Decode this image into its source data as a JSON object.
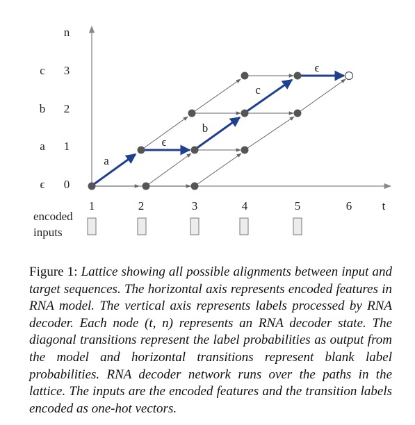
{
  "diagram": {
    "axis_n_label": "n",
    "axis_t_label": "t",
    "labels_left": [
      {
        "label": "c",
        "n": "3"
      },
      {
        "label": "b",
        "n": "2"
      },
      {
        "label": "a",
        "n": "1"
      },
      {
        "label": "ϵ",
        "n": "0"
      }
    ],
    "t_ticks": [
      "1",
      "2",
      "3",
      "4",
      "5",
      "6"
    ],
    "encoded_inputs_label_line1": "encoded",
    "encoded_inputs_label_line2": "inputs",
    "encoded_input_count": 5,
    "nodes": [
      {
        "t": 1,
        "n": 0
      },
      {
        "t": 2,
        "n": 0
      },
      {
        "t": 3,
        "n": 0
      },
      {
        "t": 2,
        "n": 1
      },
      {
        "t": 3,
        "n": 1
      },
      {
        "t": 4,
        "n": 1
      },
      {
        "t": 3,
        "n": 2
      },
      {
        "t": 4,
        "n": 2
      },
      {
        "t": 5,
        "n": 2
      },
      {
        "t": 4,
        "n": 3
      },
      {
        "t": 5,
        "n": 3
      }
    ],
    "final_node": {
      "t": 6,
      "n": 3
    },
    "highlighted_path": [
      {
        "from": [
          1,
          0
        ],
        "to": [
          2,
          1
        ],
        "label": "a"
      },
      {
        "from": [
          2,
          1
        ],
        "to": [
          3,
          1
        ],
        "label": "ϵ"
      },
      {
        "from": [
          3,
          1
        ],
        "to": [
          4,
          2
        ],
        "label": "b"
      },
      {
        "from": [
          4,
          2
        ],
        "to": [
          5,
          3
        ],
        "label": "c"
      },
      {
        "from": [
          5,
          3
        ],
        "to": [
          6,
          3
        ],
        "label": "ϵ"
      }
    ],
    "colors": {
      "path": "#1f3f8f",
      "edge": "#666666",
      "node": "#555555",
      "axis": "#888888"
    }
  },
  "caption": {
    "figure_label": "Figure 1:",
    "text": "Lattice showing all possible alignments between input and target sequences. The horizontal axis represents encoded features in RNA model. The vertical axis represents labels processed by RNA decoder. Each node (t, n) represents an RNA decoder state. The diagonal transitions represent the label probabilities as output from the model and horizontal transitions represent blank label probabilities. RNA decoder network runs over the paths in the lattice. The inputs are the encoded features and the transition labels encoded as one-hot vectors."
  }
}
